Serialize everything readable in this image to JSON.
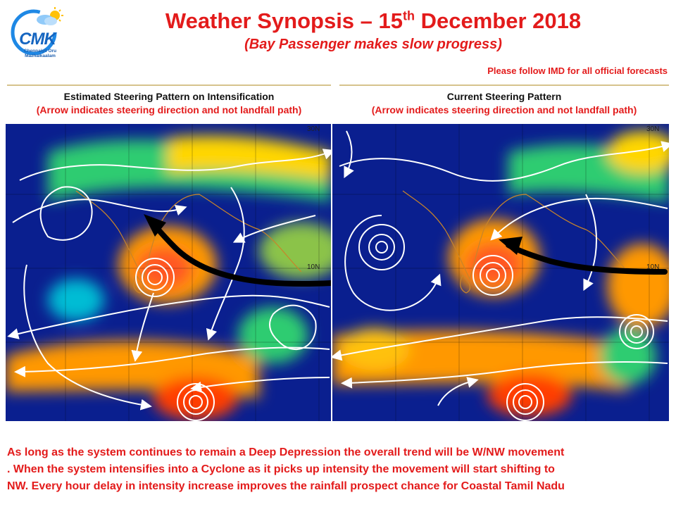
{
  "header": {
    "logo_text": "CMK",
    "logo_tagline": [
      "Chennaiyil Oru",
      "Mazhaikaalam"
    ],
    "title_main": "Weather Synopsis – 15",
    "title_sup": "th",
    "title_rest": " December 2018",
    "subtitle": "(Bay Passenger makes slow progress)",
    "notice": "Please follow IMD for all official forecasts"
  },
  "panels": [
    {
      "title": "Estimated Steering Pattern on Intensification",
      "note": "(Arrow indicates steering direction and not landfall path)",
      "lat_labels": [
        "10N",
        "30N"
      ]
    },
    {
      "title": "Current Steering Pattern",
      "note": "(Arrow indicates steering direction and not landfall path)",
      "lat_labels": [
        "10N",
        "30N"
      ]
    }
  ],
  "footer": {
    "lines": [
      "As long as the system continues to remain a Deep Depression the overall trend will be W/NW movement",
      ".  When the system intensifies into a Cyclone as it picks up intensity the movement will start shifting to",
      "NW.  Every hour delay in intensity increase improves the rainfall prospect chance for Coastal Tamil Nadu"
    ]
  },
  "colors": {
    "title_red": "#e31b1b",
    "streamline": "#ffffff",
    "steering_arrow": "#000000",
    "map_base": "#0a1f8f",
    "coastline": "#c8842a"
  }
}
